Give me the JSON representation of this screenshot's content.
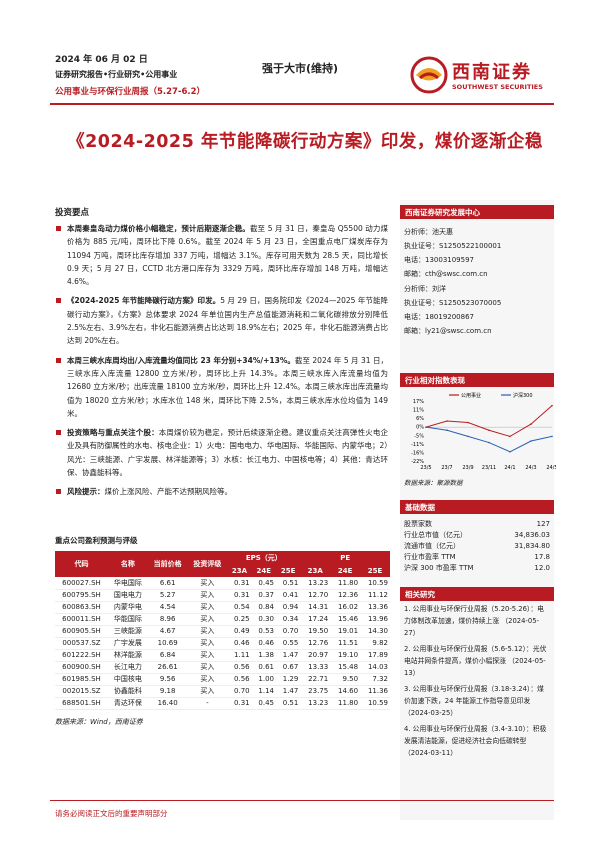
{
  "header": {
    "date": "2024 年 06 月 02 日",
    "report_type": "证券研究报告•行业研究•公用事业",
    "weekly": "公用事业与环保行业周报（5.27-6.2）",
    "rating": "强于大市(维持)",
    "logo_cn": "西南证券",
    "logo_en": "SOUTHWEST SECURITIES",
    "brand_color": "#b81c22"
  },
  "title": "《2024-2025 年节能降碳行动方案》印发，煤价逐渐企稳",
  "summary": {
    "heading": "投资要点",
    "bullets": [
      {
        "bold": "本周秦皇岛动力煤价格小幅稳定，预计后期逐渐企稳。",
        "text": "截至 5 月 31 日，秦皇岛 Q5500 动力煤价格为 885 元/吨，周环比下降 0.6%。截至 2024 年 5 月 23 日，全国重点电厂煤炭库存为 11094 万吨，周环比库存增加 337 万吨，增幅达 3.1%。库存可用天数为 28.5 天，同比增长 0.9 天；5 月 27 日，CCTD 北方港口库存为 3329 万吨，周环比库存增加 148 万吨，增幅达 4.6%。"
      },
      {
        "bold": "《2024-2025 年节能降碳行动方案》印发。",
        "text": "5 月 29 日，国务院印发《2024—2025 年节能降碳行动方案》，《方案》总体要求 2024 年单位国内生产总值能源消耗和二氧化碳排放分别降低 2.5%左右、3.9%左右，非化石能源消费占比达到 18.9%左右；2025 年，非化石能源消费占比达到 20%左右。"
      },
      {
        "bold": "本周三峡水库周均出/入库流量均值同比 23 年分别+34%/+13%。",
        "text": "截至 2024 年 5 月 31 日，三峡水库入库流量 12800 立方米/秒，周环比上升 14.3%。本周三峡水库入库流量均值为 12680 立方米/秒；出库流量 18100 立方米/秒，周环比上升 12.4%。本周三峡水库出库流量均值为 18020 立方米/秒；水库水位 148 米，周环比下降 2.5%，本周三峡水库水位均值为 149 米。"
      },
      {
        "bold": "投资策略与重点关注个股：",
        "text": "本周煤价较为稳定，预计后续逐渐企稳。建议重点关注高弹性火电企业及具有防御属性的水电、核电企业：1）火电：国电电力、华电国际、华能国际、内蒙华电；2）风光：三峡能源、广宇发展、林洋能源等；3）水核：长江电力、中国核电等；4）其他：青达环保、协鑫能科等。"
      },
      {
        "bold": "风险提示：",
        "text": "煤价上涨风险、产能不达预期风险等。"
      }
    ]
  },
  "stock_table": {
    "title": "重点公司盈利预测与评级",
    "headers": {
      "code": "代码",
      "name": "名称",
      "price": "当前价格",
      "rating": "投资评级",
      "eps": "EPS（元）",
      "pe": "PE",
      "y1": "23A",
      "y2": "24E",
      "y3": "25E"
    },
    "rows": [
      [
        "600027.SH",
        "华电国际",
        "6.61",
        "买入",
        "0.31",
        "0.45",
        "0.51",
        "13.23",
        "11.80",
        "10.59"
      ],
      [
        "600795.SH",
        "国电电力",
        "5.27",
        "买入",
        "0.31",
        "0.37",
        "0.41",
        "12.70",
        "12.36",
        "11.12"
      ],
      [
        "600863.SH",
        "内蒙华电",
        "4.54",
        "买入",
        "0.54",
        "0.84",
        "0.94",
        "14.31",
        "16.02",
        "13.36"
      ],
      [
        "600011.SH",
        "华能国际",
        "8.96",
        "买入",
        "0.25",
        "0.30",
        "0.34",
        "17.24",
        "15.46",
        "13.96"
      ],
      [
        "600905.SH",
        "三峡能源",
        "4.67",
        "买入",
        "0.49",
        "0.53",
        "0.70",
        "19.50",
        "19.01",
        "14.30"
      ],
      [
        "000537.SZ",
        "广宇发展",
        "10.69",
        "买入",
        "0.46",
        "0.46",
        "0.55",
        "12.76",
        "11.51",
        "9.82"
      ],
      [
        "601222.SH",
        "林洋能源",
        "6.84",
        "买入",
        "1.11",
        "1.38",
        "1.47",
        "20.97",
        "19.10",
        "17.89"
      ],
      [
        "600900.SH",
        "长江电力",
        "26.61",
        "买入",
        "0.56",
        "0.61",
        "0.67",
        "13.33",
        "15.48",
        "14.03"
      ],
      [
        "601985.SH",
        "中国核电",
        "9.56",
        "买入",
        "0.56",
        "1.00",
        "1.29",
        "22.71",
        "9.50",
        "7.32"
      ],
      [
        "002015.SZ",
        "协鑫能科",
        "9.18",
        "买入",
        "0.70",
        "1.14",
        "1.47",
        "23.75",
        "14.60",
        "11.36"
      ],
      [
        "688501.SH",
        "青达环保",
        "16.40",
        "-",
        "0.31",
        "0.45",
        "0.51",
        "13.23",
        "11.80",
        "10.59"
      ]
    ],
    "source": "数据来源：Wind，西南证券"
  },
  "sidebar": {
    "team_heading": "西南证券研究发展中心",
    "analysts": [
      {
        "name": "分析师：池天惠",
        "license": "执业证号：S1250522100001",
        "phone": "电话：13003109597",
        "email": "邮箱：cth@swsc.com.cn"
      },
      {
        "name": "分析师：刘洋",
        "license": "执业证号：S1250523070005",
        "phone": "电话：18019200867",
        "email": "邮箱：ly21@swsc.com.cn"
      }
    ],
    "chart_heading": "行业相对指数表现",
    "chart_source": "数据来源：聚源数据",
    "basic_heading": "基础数据",
    "basic": [
      {
        "k": "股票家数",
        "v": "127"
      },
      {
        "k": "行业总市值（亿元）",
        "v": "34,836.03"
      },
      {
        "k": "流通市值（亿元）",
        "v": "31,834.80"
      },
      {
        "k": "行业市盈率 TTM",
        "v": "17.8"
      },
      {
        "k": "沪深 300 市盈率 TTM",
        "v": "12.0"
      }
    ],
    "related_heading": "相关研究",
    "related": [
      "1. 公用事业与环保行业周报（5.20-5.26）：电力体制改革加速，煤价持续上涨 （2024-05-27）",
      "2. 公用事业与环保行业周报（5.6-5.12）：光伏电站并网条件提高，煤价小幅探涨 （2024-05-13）",
      "3. 公用事业与环保行业周报（3.18-3.24）：煤价加速下跌，24 年能源工作指导意见印发 （2024-03-25）",
      "4. 公用事业与环保行业周报（3.4-3.10）：积极发展清洁能源，促进经济社会向低碳转型 （2024-03-11）"
    ]
  },
  "chart_data": {
    "type": "line",
    "x": [
      "23/5",
      "23/7",
      "23/9",
      "23/11",
      "24/1",
      "24/3",
      "24/5"
    ],
    "series": [
      {
        "name": "公用事业",
        "color": "#b81c22",
        "values": [
          0,
          4,
          3,
          -2,
          -6,
          2,
          14
        ]
      },
      {
        "name": "沪深300",
        "color": "#2a5fb3",
        "values": [
          0,
          -2,
          -6,
          -10,
          -16,
          -9,
          -6
        ]
      }
    ],
    "ylim": [
      -22,
      17
    ],
    "yticks": [
      "17%",
      "11%",
      "6%",
      "0%",
      "-5%",
      "-11%",
      "-16%",
      "-22%"
    ],
    "legend": "top"
  },
  "footer": "请务必阅读正文后的重要声明部分"
}
